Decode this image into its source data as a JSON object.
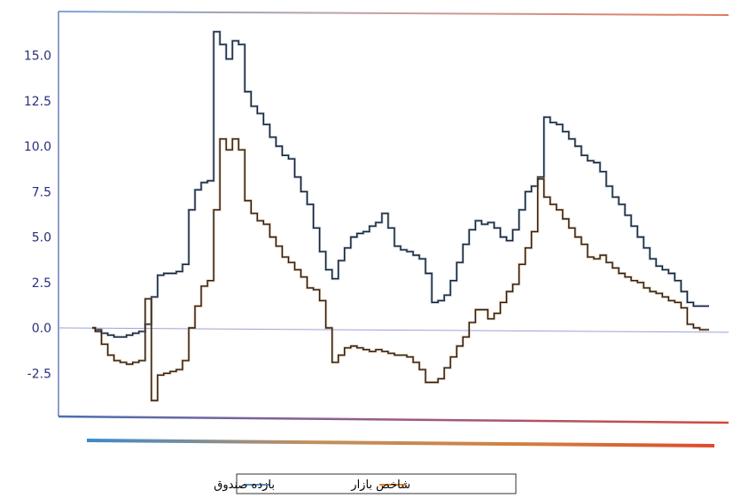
{
  "chart_data": {
    "type": "line",
    "title": "",
    "xlabel": "",
    "ylabel": "",
    "ylim": [
      -4.5,
      17
    ],
    "y_ticks": [
      "15.0",
      "12.5",
      "10.0",
      "7.5",
      "5.0",
      "2.5",
      "0.0",
      "-2.5"
    ],
    "y_tick_values": [
      15,
      12.5,
      10,
      7.5,
      5,
      2.5,
      0,
      -2.5
    ],
    "legend_position": "bottom",
    "grid": false,
    "x_count": 100,
    "series": [
      {
        "name": "بازده صندوق",
        "color": "#5a8fc4",
        "values": [
          0,
          -0.1,
          -0.3,
          -0.4,
          -0.5,
          -0.5,
          -0.4,
          -0.3,
          -0.2,
          0.2,
          1.7,
          2.9,
          3.0,
          3.0,
          3.1,
          3.5,
          6.5,
          7.6,
          8.0,
          8.1,
          16.3,
          15.6,
          14.8,
          15.8,
          15.6,
          13.0,
          12.2,
          11.8,
          11.2,
          10.5,
          10.0,
          9.5,
          9.3,
          8.3,
          7.5,
          6.8,
          5.5,
          4.2,
          3.2,
          2.7,
          3.7,
          4.4,
          5.0,
          5.2,
          5.3,
          5.6,
          5.8,
          6.3,
          5.5,
          4.5,
          4.3,
          4.2,
          4.0,
          3.8,
          3.0,
          1.4,
          1.5,
          1.8,
          2.6,
          3.6,
          4.6,
          5.4,
          5.9,
          5.7,
          5.8,
          5.5,
          5.0,
          4.8,
          5.4,
          6.5,
          7.5,
          7.8,
          8.3,
          11.6,
          11.3,
          11.2,
          10.8,
          10.4,
          10.0,
          9.5,
          9.2,
          9.1,
          8.6,
          7.8,
          7.2,
          6.8,
          6.2,
          5.6,
          5.0,
          4.4,
          3.8,
          3.4,
          3.2,
          3.0,
          2.6,
          2.0,
          1.4,
          1.2,
          1.2,
          1.2
        ]
      },
      {
        "name": "شاخص بازار",
        "color": "#e0892c",
        "values": [
          0,
          -0.2,
          -0.9,
          -1.5,
          -1.8,
          -1.9,
          -2.0,
          -1.9,
          -1.8,
          1.6,
          -4.0,
          -2.6,
          -2.5,
          -2.4,
          -2.3,
          -1.8,
          0.0,
          1.2,
          2.3,
          2.6,
          6.5,
          10.4,
          9.8,
          10.4,
          9.8,
          7.0,
          6.3,
          5.9,
          5.7,
          5.0,
          4.5,
          3.9,
          3.6,
          3.2,
          2.8,
          2.2,
          2.1,
          1.5,
          0.0,
          -1.9,
          -1.5,
          -1.1,
          -1.0,
          -1.1,
          -1.2,
          -1.3,
          -1.2,
          -1.3,
          -1.4,
          -1.5,
          -1.5,
          -1.6,
          -1.9,
          -2.3,
          -3.0,
          -3.0,
          -2.8,
          -2.2,
          -1.6,
          -1.0,
          -0.5,
          0.3,
          1.0,
          1.0,
          0.5,
          0.8,
          1.4,
          2.0,
          2.4,
          3.5,
          4.4,
          5.3,
          8.2,
          7.2,
          6.8,
          6.5,
          6.0,
          5.5,
          5.0,
          4.6,
          3.9,
          3.8,
          4.0,
          3.6,
          3.3,
          3.0,
          2.8,
          2.6,
          2.5,
          2.2,
          2.0,
          1.9,
          1.7,
          1.5,
          1.4,
          1.1,
          0.2,
          0.0,
          -0.1,
          -0.1
        ]
      }
    ]
  }
}
